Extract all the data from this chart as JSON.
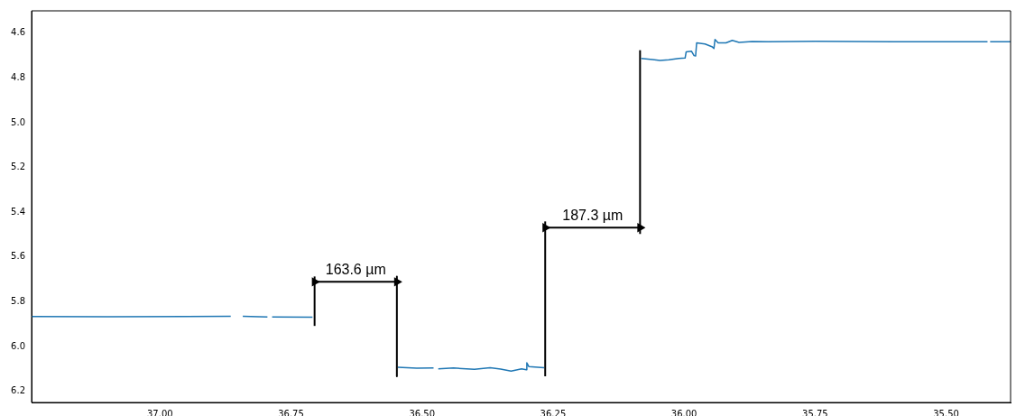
{
  "chart_data": {
    "type": "line",
    "xlim": [
      37.245,
      35.377
    ],
    "ylim": [
      6.25,
      4.5
    ],
    "xticks": [
      {
        "value": 37,
        "label": "37.00"
      },
      36.75,
      {
        "value": 36.5,
        "label": "36.50"
      },
      36.25,
      {
        "value": 36,
        "label": "36.00"
      },
      35.75,
      {
        "value": 35.5,
        "label": "35.50"
      }
    ],
    "yticks": [
      4.6,
      4.8,
      {
        "value": 5,
        "label": "5.0"
      },
      5.2,
      5.4,
      5.6,
      5.8,
      {
        "value": 6,
        "label": "6.0"
      },
      6.2
    ],
    "series": [
      {
        "type": "line",
        "color": "#1f77b4",
        "x": [
          37.245,
          37.1,
          36.95,
          36.865,
          36.855,
          36.842,
          36.795,
          36.79,
          36.786,
          36.709,
          36.6,
          36.546,
          36.51,
          36.478,
          36.473,
          36.469,
          36.44,
          36.4,
          36.37,
          36.35,
          36.33,
          36.31,
          36.301,
          36.3,
          36.296,
          36.267,
          36.2,
          36.082,
          36.06,
          36.046,
          36.029,
          36.01,
          35.998,
          35.996,
          35.986,
          35.981,
          35.978,
          35.976,
          35.96,
          35.947,
          35.943,
          35.941,
          35.935,
          35.92,
          35.908,
          35.895,
          35.87,
          35.84,
          35.75,
          35.6,
          35.421,
          35.418,
          35.416,
          35.377
        ],
        "values": [
          5.866,
          5.867,
          5.866,
          5.865,
          null,
          5.865,
          5.868,
          null,
          5.868,
          5.869,
          null,
          6.093,
          6.097,
          6.096,
          null,
          6.1,
          6.096,
          6.102,
          6.095,
          6.101,
          6.11,
          6.1,
          6.104,
          6.073,
          6.09,
          6.095,
          null,
          4.713,
          4.718,
          4.722,
          4.719,
          4.713,
          4.711,
          4.683,
          4.68,
          4.7,
          4.702,
          4.643,
          4.648,
          4.66,
          4.668,
          4.628,
          4.643,
          4.643,
          4.632,
          4.641,
          4.637,
          4.638,
          4.636,
          4.638,
          4.638,
          null,
          4.638,
          4.638
        ]
      },
      {
        "type": "line",
        "color": "#000000",
        "x": [
          36.705,
          36.705
        ],
        "values": [
          5.908,
          5.687
        ]
      },
      {
        "type": "line",
        "color": "#000000",
        "marker": "triangle",
        "x": [
          36.705,
          36.548
        ],
        "values": [
          5.711,
          5.711
        ]
      },
      {
        "type": "line",
        "color": "#000000",
        "x": [
          36.548,
          36.548
        ],
        "values": [
          5.687,
          6.133
        ]
      },
      {
        "type": "line",
        "color": "#000000",
        "x": [
          36.265,
          36.265
        ],
        "values": [
          6.133,
          5.441
        ]
      },
      {
        "type": "line",
        "color": "#000000",
        "marker": "triangle",
        "x": [
          36.265,
          36.084
        ],
        "values": [
          5.469,
          5.469
        ]
      },
      {
        "type": "line",
        "color": "#000000",
        "x": [
          36.084,
          36.084
        ],
        "values": [
          5.497,
          4.676
        ]
      }
    ],
    "annotations": [
      "163.6 µm",
      "187.3 µm"
    ]
  }
}
